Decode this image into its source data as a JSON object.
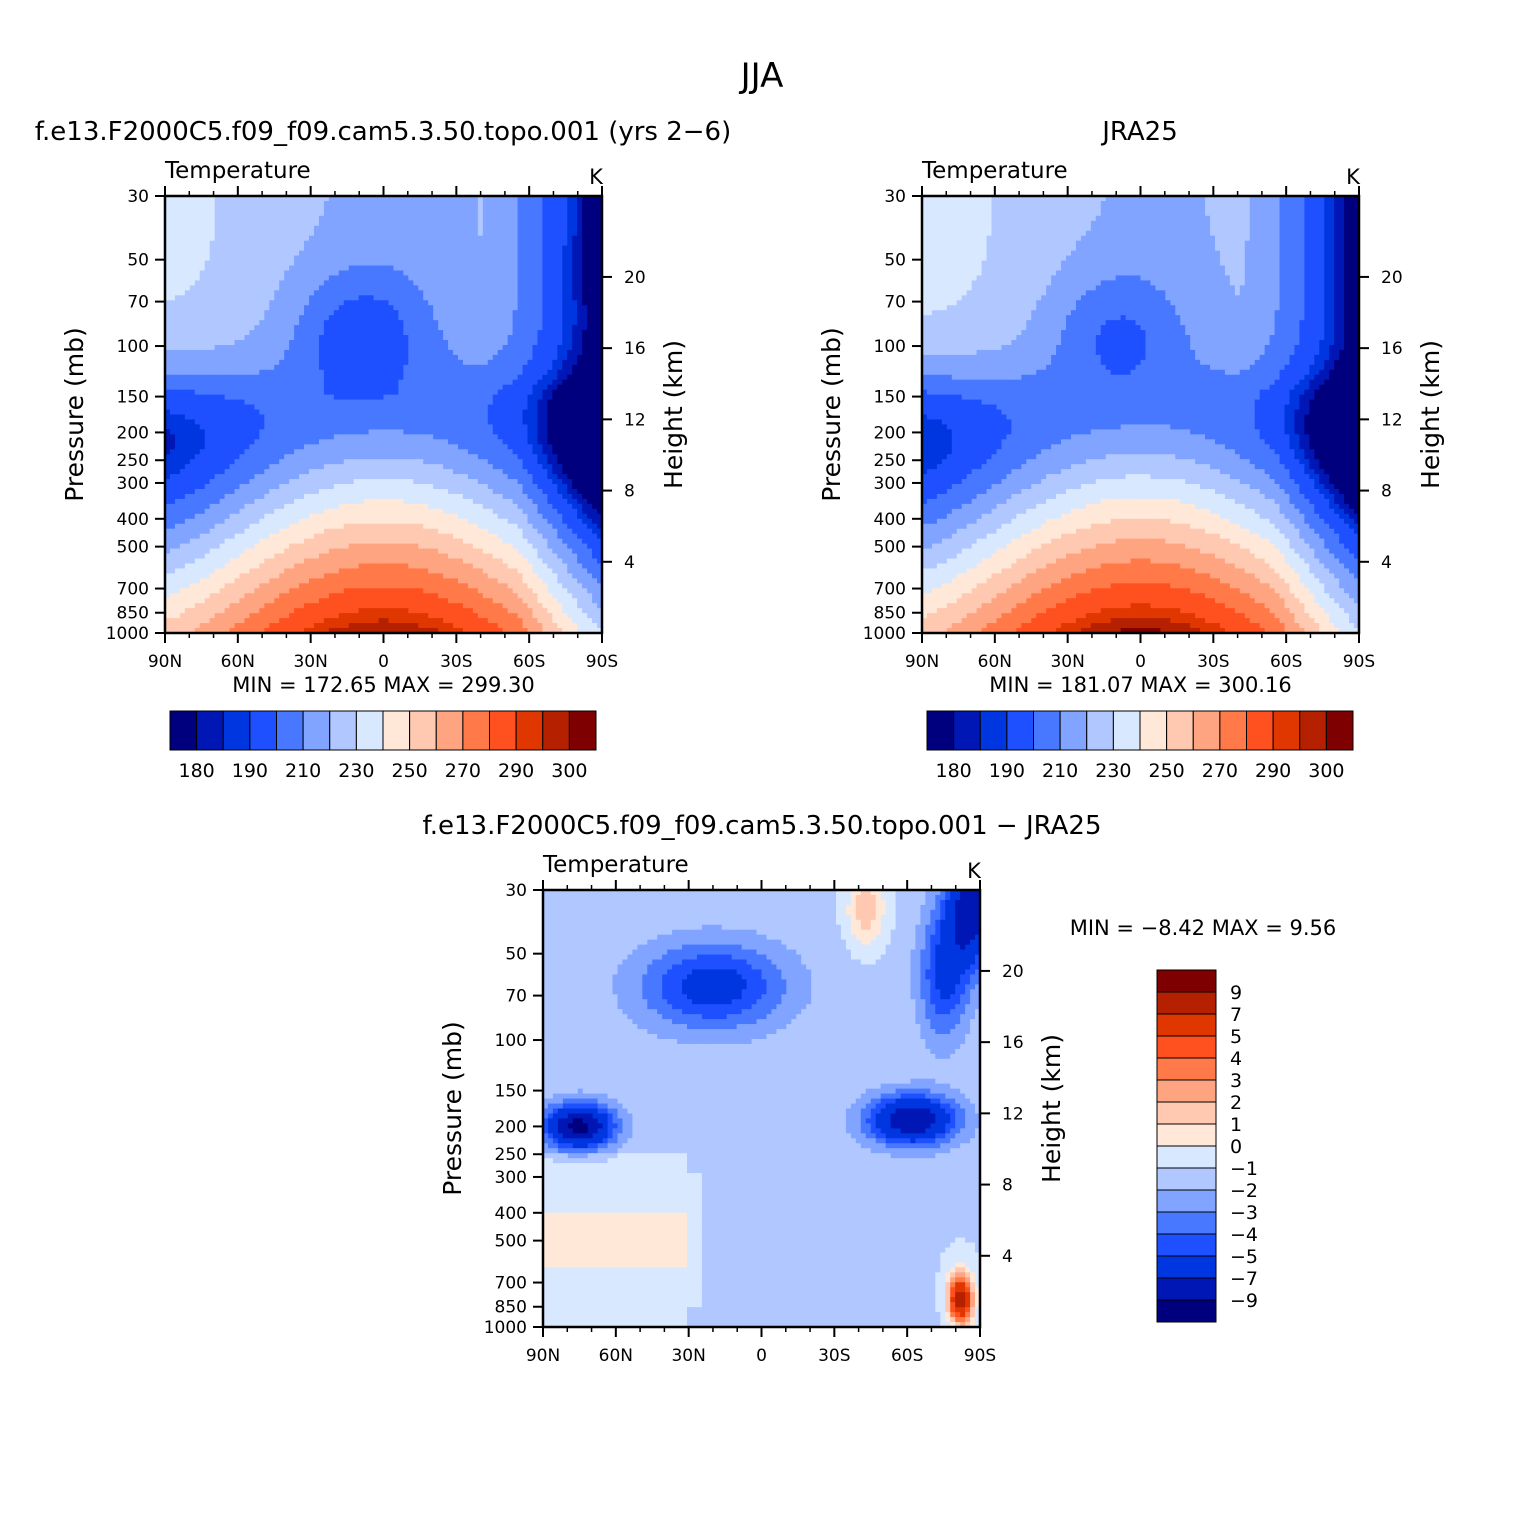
{
  "figure": {
    "title": "JJA"
  },
  "colors": {
    "full_scale": [
      "#00007f",
      "#0016b5",
      "#0036e0",
      "#1e50ff",
      "#4878ff",
      "#80a4ff",
      "#b0c8ff",
      "#d8e8ff",
      "#ffe8d8",
      "#ffc8b0",
      "#ffa480",
      "#ff7a48",
      "#ff5020",
      "#e03600",
      "#b52000",
      "#7f0000"
    ],
    "diff_scale": [
      "#00007f",
      "#0016b5",
      "#0036e0",
      "#1e50ff",
      "#4878ff",
      "#80a4ff",
      "#b0c8ff",
      "#d8e8ff",
      "#ffe8d8",
      "#ffc8b0",
      "#ffa480",
      "#ff7a48",
      "#ff5020",
      "#e03600",
      "#b52000",
      "#7f0000"
    ]
  },
  "chart_data": [
    {
      "type": "heatmap",
      "id": "model",
      "title": "f.e13.F2000C5.f09_f09.cam5.3.50.topo.001 (yrs 2−6)",
      "subtitle_left": "Temperature",
      "units": "K",
      "ylabel": "Pressure (mb)",
      "ylabel_right": "Height (km)",
      "x_ticks": [
        "90N",
        "60N",
        "30N",
        "0",
        "30S",
        "60S",
        "90S"
      ],
      "x_values": [
        90,
        60,
        30,
        0,
        -30,
        -60,
        -90
      ],
      "y_ticks": [
        "30",
        "50",
        "70",
        "100",
        "150",
        "200",
        "250",
        "300",
        "400",
        "500",
        "700",
        "850",
        "1000"
      ],
      "y_values": [
        30,
        50,
        70,
        100,
        150,
        200,
        250,
        300,
        400,
        500,
        700,
        850,
        1000
      ],
      "ylim": [
        1000,
        30
      ],
      "yscale": "log",
      "height_ticks": [
        "20",
        "16",
        "12",
        "8",
        "4"
      ],
      "height_values": [
        20,
        16,
        12,
        8,
        4
      ],
      "min_max": "MIN = 172.65   MAX = 299.30",
      "colorbar_labels": [
        "180",
        "190",
        "210",
        "230",
        "250",
        "270",
        "290",
        "300"
      ],
      "contour_levels": [
        180,
        185,
        190,
        200,
        210,
        220,
        230,
        240,
        250,
        260,
        270,
        280,
        290,
        295,
        300
      ],
      "min": 172.65,
      "max": 299.3,
      "description": "zonal-mean temperature, latitude vs pressure"
    },
    {
      "type": "heatmap",
      "id": "obs",
      "title": "JRA25",
      "subtitle_left": "Temperature",
      "units": "K",
      "ylabel": "Pressure (mb)",
      "ylabel_right": "Height (km)",
      "x_ticks": [
        "90N",
        "60N",
        "30N",
        "0",
        "30S",
        "60S",
        "90S"
      ],
      "x_values": [
        90,
        60,
        30,
        0,
        -30,
        -60,
        -90
      ],
      "y_ticks": [
        "30",
        "50",
        "70",
        "100",
        "150",
        "200",
        "250",
        "300",
        "400",
        "500",
        "700",
        "850",
        "1000"
      ],
      "y_values": [
        30,
        50,
        70,
        100,
        150,
        200,
        250,
        300,
        400,
        500,
        700,
        850,
        1000
      ],
      "ylim": [
        1000,
        30
      ],
      "yscale": "log",
      "height_ticks": [
        "20",
        "16",
        "12",
        "8",
        "4"
      ],
      "height_values": [
        20,
        16,
        12,
        8,
        4
      ],
      "min_max": "MIN = 181.07   MAX = 300.16",
      "colorbar_labels": [
        "180",
        "190",
        "210",
        "230",
        "250",
        "270",
        "290",
        "300"
      ],
      "contour_levels": [
        180,
        185,
        190,
        200,
        210,
        220,
        230,
        240,
        250,
        260,
        270,
        280,
        290,
        295,
        300
      ],
      "min": 181.07,
      "max": 300.16
    },
    {
      "type": "heatmap",
      "id": "diff",
      "title": "f.e13.F2000C5.f09_f09.cam5.3.50.topo.001 − JRA25",
      "subtitle_left": "Temperature",
      "units": "K",
      "ylabel": "Pressure (mb)",
      "ylabel_right": "Height (km)",
      "x_ticks": [
        "90N",
        "60N",
        "30N",
        "0",
        "30S",
        "60S",
        "90S"
      ],
      "x_values": [
        90,
        60,
        30,
        0,
        -30,
        -60,
        -90
      ],
      "y_ticks": [
        "30",
        "50",
        "70",
        "100",
        "150",
        "200",
        "250",
        "300",
        "400",
        "500",
        "700",
        "850",
        "1000"
      ],
      "y_values": [
        30,
        50,
        70,
        100,
        150,
        200,
        250,
        300,
        400,
        500,
        700,
        850,
        1000
      ],
      "ylim": [
        1000,
        30
      ],
      "yscale": "log",
      "height_ticks": [
        "20",
        "16",
        "12",
        "8",
        "4"
      ],
      "height_values": [
        20,
        16,
        12,
        8,
        4
      ],
      "min_max": "MIN =   −8.42   MAX =    9.56",
      "colorbar_labels": [
        "9",
        "7",
        "5",
        "4",
        "3",
        "2",
        "1",
        "0",
        "−1",
        "−2",
        "−3",
        "−4",
        "−5",
        "−7",
        "−9"
      ],
      "contour_levels": [
        -9,
        -7,
        -5,
        -4,
        -3,
        -2,
        -1,
        0,
        1,
        2,
        3,
        4,
        5,
        7,
        9
      ],
      "min": -8.42,
      "max": 9.56
    }
  ]
}
